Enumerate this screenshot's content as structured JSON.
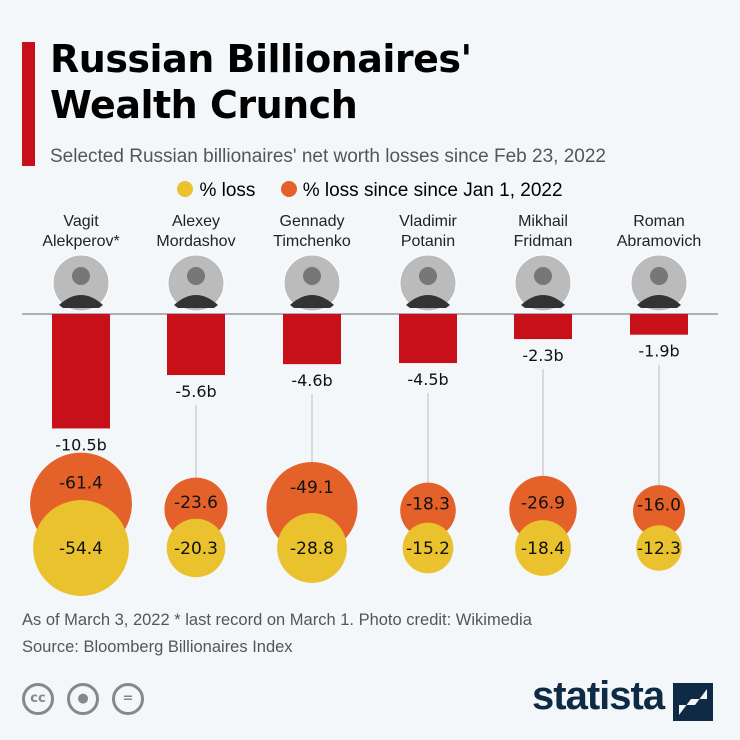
{
  "header": {
    "title_line1": "Russian Billionaires'",
    "title_line2": "Wealth Crunch",
    "subtitle": "Selected Russian billionaires' net worth losses since Feb 23, 2022"
  },
  "legend": [
    {
      "label": "% loss",
      "color": "#e9c22e"
    },
    {
      "label": "% loss since since Jan 1, 2022",
      "color": "#e4622a"
    }
  ],
  "colors": {
    "bar": "#c8101a",
    "accent": "#c8101a",
    "logo": "#0f2a44"
  },
  "chart_data": {
    "type": "bar",
    "categories": [
      [
        "Vagit",
        "Alekperov*"
      ],
      [
        "Alexey",
        "Mordashov"
      ],
      [
        "Gennady",
        "Timchenko"
      ],
      [
        "Vladimir",
        "Potanin"
      ],
      [
        "Mikhail",
        "Fridman"
      ],
      [
        "Roman",
        "Abramovich"
      ]
    ],
    "series": [
      {
        "name": "",
        "unit": "billion USD",
        "values": [
          -10.5,
          -5.6,
          -4.6,
          -4.5,
          -2.3,
          -1.9
        ],
        "labels": [
          "-10.5b",
          "-5.6b",
          "-4.6b",
          "-4.5b",
          "-2.3b",
          "-1.9b"
        ]
      },
      {
        "name": "% loss",
        "type": "bubble",
        "values": [
          -54.4,
          -20.3,
          -28.8,
          -15.2,
          -18.4,
          -12.3
        ],
        "labels": [
          "-54.4",
          "-20.3",
          "-28.8",
          "-15.2",
          "-18.4",
          "-12.3"
        ]
      },
      {
        "name": "% loss since since Jan 1, 2022",
        "type": "bubble",
        "values": [
          -61.4,
          -23.6,
          -49.1,
          -18.3,
          -26.9,
          -16.0
        ],
        "labels": [
          "-61.4",
          "-23.6",
          "-49.1",
          "-18.3",
          "-26.9",
          "-16.0"
        ]
      }
    ],
    "photos": "portrait photos of each billionaire"
  },
  "footer": {
    "note": "As of March 3, 2022 * last record on March 1. Photo credit: Wikimedia",
    "source": "Source: Bloomberg Billionaires Index",
    "cc": "cc",
    "logo": "statista"
  }
}
